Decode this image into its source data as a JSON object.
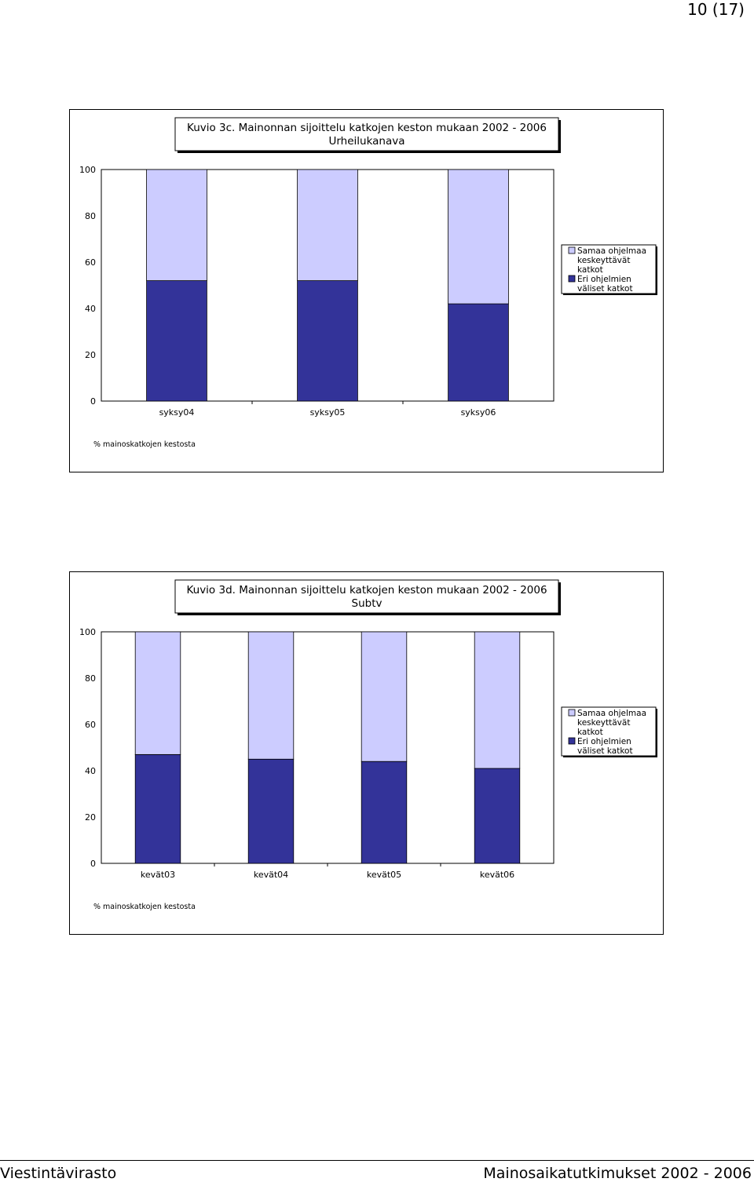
{
  "page": {
    "number": "10 (17)"
  },
  "footer": {
    "left": "Viestintävirasto",
    "right": "Mainosaikatutkimukset 2002 - 2006"
  },
  "chart_data": [
    {
      "type": "bar",
      "stacked": true,
      "title": "Kuvio 3c. Mainonnan sijoittelu katkojen keston mukaan 2002 - 2006",
      "subtitle": "Urheilukanava",
      "ylabel": "% mainoskatkojen kestosta",
      "ylim": [
        0,
        100
      ],
      "yticks": [
        0,
        20,
        40,
        60,
        80,
        100
      ],
      "grid": false,
      "legend_position": "right",
      "categories": [
        "syksy04",
        "syksy05",
        "syksy06"
      ],
      "series": [
        {
          "name": "Eri ohjelmien väliset katkot",
          "color": "#333399",
          "values": [
            52,
            52,
            42
          ]
        },
        {
          "name": "Samaa ohjelmaa keskeyttävät katkot",
          "color": "#ccccff",
          "values": [
            48,
            48,
            58
          ]
        }
      ]
    },
    {
      "type": "bar",
      "stacked": true,
      "title": "Kuvio 3d. Mainonnan sijoittelu katkojen keston mukaan 2002 - 2006",
      "subtitle": "Subtv",
      "ylabel": "% mainoskatkojen kestosta",
      "ylim": [
        0,
        100
      ],
      "yticks": [
        0,
        20,
        40,
        60,
        80,
        100
      ],
      "grid": false,
      "legend_position": "right",
      "categories": [
        "kevät03",
        "kevät04",
        "kevät05",
        "kevät06"
      ],
      "series": [
        {
          "name": "Eri ohjelmien väliset katkot",
          "color": "#333399",
          "values": [
            47,
            45,
            44,
            41
          ]
        },
        {
          "name": "Samaa ohjelmaa keskeyttävät katkot",
          "color": "#ccccff",
          "values": [
            53,
            55,
            56,
            59
          ]
        }
      ]
    }
  ]
}
